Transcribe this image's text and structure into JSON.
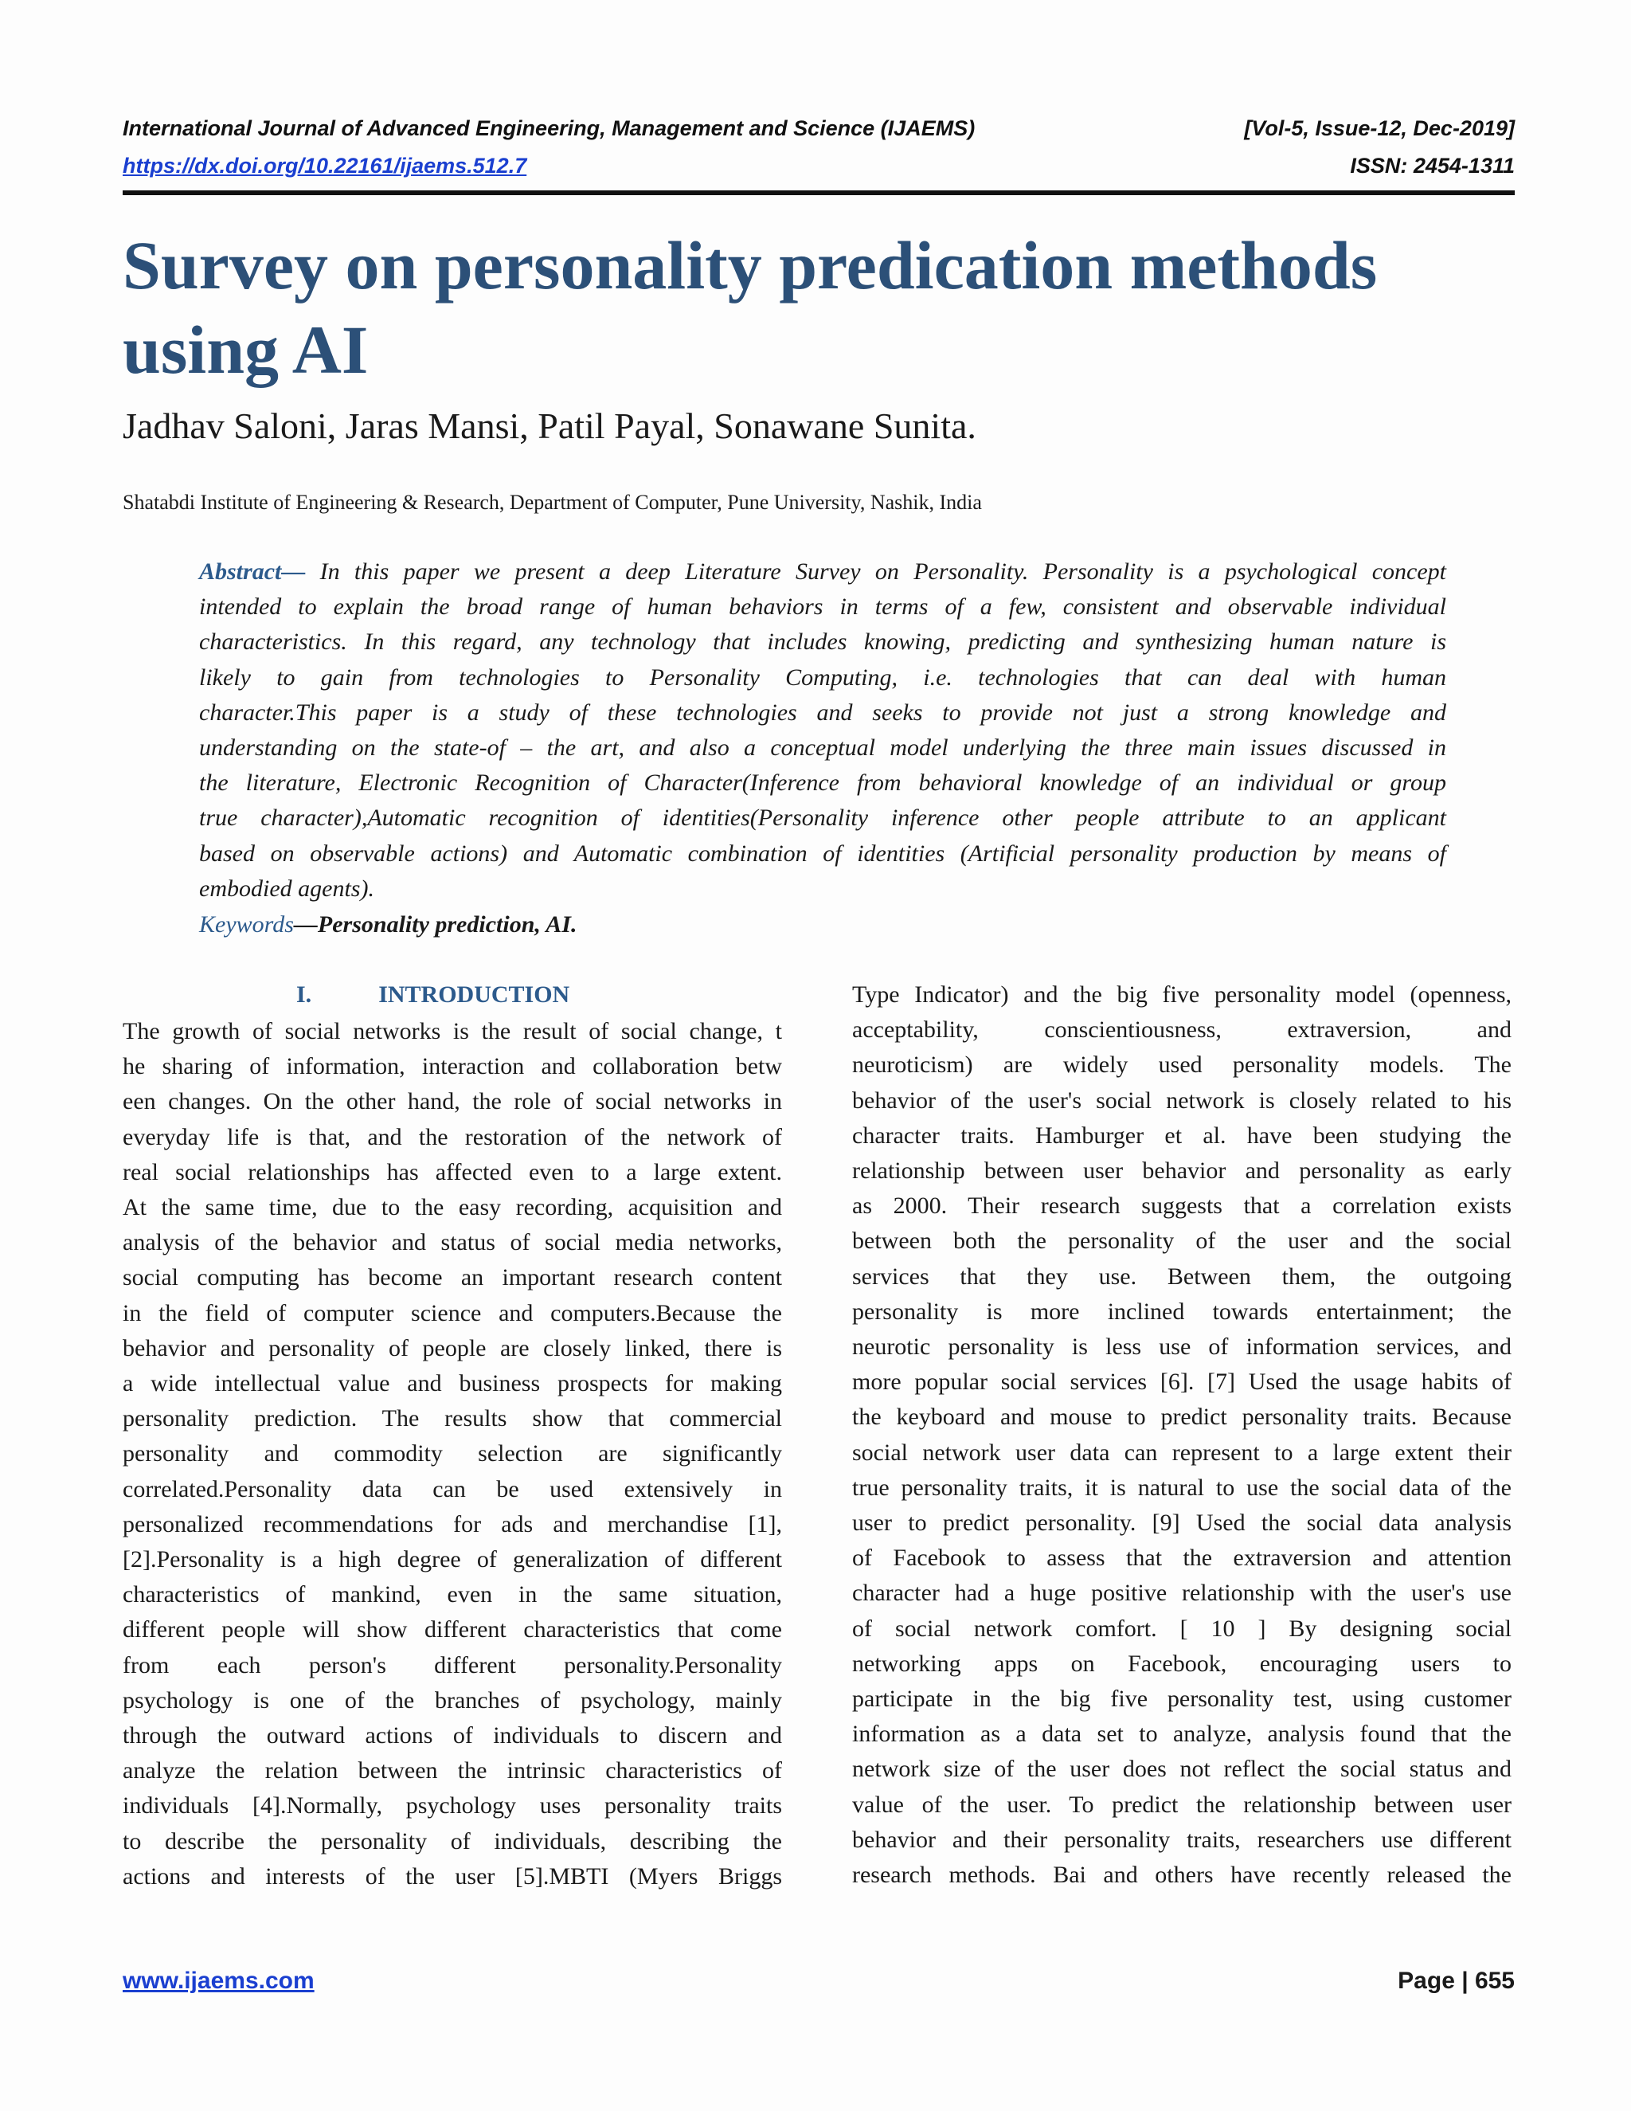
{
  "header": {
    "journal": "International Journal of Advanced Engineering, Management and Science (IJAEMS)",
    "volume": "[Vol-5, Issue-12, Dec-2019]",
    "doi": "https://dx.doi.org/10.22161/ijaems.512.7",
    "issn": "ISSN: 2454-1311"
  },
  "title": "Survey on personality predication methods using AI",
  "authors": "Jadhav Saloni, Jaras Mansi, Patil Payal, Sonawane Sunita.",
  "affiliation": "Shatabdi Institute of Engineering & Research, Department of Computer, Pune University, Nashik, India",
  "abstract": {
    "label": "Abstract—",
    "lines": [
      "In this paper we present a deep Literature Survey on Personality. Personality is a psychological concept",
      "intended to explain the broad range of human behaviors in terms of a few, consistent and observable individual",
      "characteristics. In this regard, any technology that includes knowing, predicting and synthesizing human nature is",
      "likely to gain from technologies to Personality Computing, i.e. technologies that can deal with human",
      "character.This paper is a study of these technologies and seeks to provide not just a strong knowledge and",
      "understanding on the state-of – the art, and also a conceptual model underlying the three main issues discussed in",
      "the literature, Electronic Recognition of Character(Inference from behavioral knowledge of an individual or group",
      "true character),Automatic recognition of identities(Personality inference other people attribute to an applicant",
      "based on observable actions) and Automatic combination of identities (Artificial personality production by means of",
      "embodied agents)."
    ]
  },
  "keywords": {
    "label": "Keywords",
    "text": "—Personality prediction, AI."
  },
  "section": {
    "number": "I.",
    "heading": "INTRODUCTION",
    "left_lines": [
      "The growth of social networks is the result of social change, t",
      "he sharing of information, interaction and collaboration betw",
      "een changes. On the other hand, the role of social networks in",
      "everyday life is that, and the restoration of the network of",
      "real social relationships has affected even to a large extent.",
      "At the same time, due to the easy recording, acquisition and",
      "analysis of the behavior and status of social media networks,",
      "social computing has become an important research content",
      "in the field of computer science and computers.Because the",
      "behavior and personality of people are closely linked, there is",
      "a wide intellectual value and business prospects for making",
      "personality prediction. The results show that commercial",
      "personality and commodity selection are significantly",
      "correlated.Personality data can be used extensively in",
      "personalized recommendations for ads and merchandise [1],",
      "[2].Personality is a high degree of generalization of different",
      "characteristics of mankind, even in the same situation,",
      "different people will show different characteristics that come",
      "from each person's different personality.Personality",
      "psychology is one of the branches of psychology, mainly",
      "through the outward actions of individuals to discern and",
      "analyze the relation between the intrinsic characteristics of",
      "individuals [4].Normally, psychology uses personality traits",
      "to describe the personality of individuals, describing the",
      "actions and interests of the user [5].MBTI (Myers Briggs"
    ],
    "right_lines": [
      "Type Indicator) and the big five personality model (openness,",
      "acceptability, conscientiousness, extraversion, and",
      "neuroticism) are widely used personality models. The",
      "behavior of the user's social network is closely related to his",
      "character traits. Hamburger et al. have been studying the",
      "relationship between user behavior and personality as early",
      "as 2000. Their research suggests that a correlation exists",
      "between both the personality of the user and the social",
      "services that they use. Between them, the outgoing",
      "personality is more inclined towards entertainment; the",
      "neurotic personality is less use of information services, and",
      "more popular social services [6]. [7] Used the usage habits of",
      "the keyboard and mouse to predict personality traits. Because",
      "social network user data can represent to a large extent their",
      "true personality traits, it is natural to use the social data of the",
      "user to predict personality. [9] Used the social data analysis",
      "of Facebook to assess that the extraversion and attention",
      "character had a huge positive relationship with the user's use",
      "of social network comfort. [ 10 ] By designing social",
      "networking apps on Facebook, encouraging users to",
      "participate in the big five personality test, using customer",
      "information as a data set to analyze, analysis found that the",
      "network size of the user does not reflect the social status and",
      "value of the user. To predict the relationship between user",
      "behavior and their personality traits, researchers use different",
      "research methods. Bai and others have recently released the"
    ]
  },
  "footer": {
    "website": "www.ijaems.com",
    "page": "Page | 655"
  }
}
